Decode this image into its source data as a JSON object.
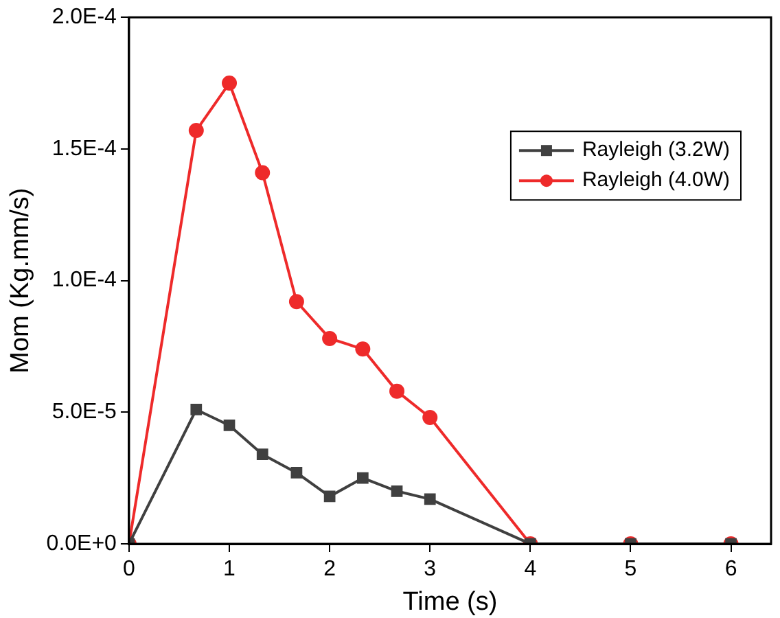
{
  "chart_data": {
    "type": "line",
    "xlabel": "Time (s)",
    "ylabel": "Mom (Kg.mm/s)",
    "x": [
      0,
      0.67,
      1,
      1.33,
      1.67,
      2,
      2.33,
      2.67,
      3,
      4,
      5,
      6
    ],
    "series": [
      {
        "name": "Rayleigh (3.2W)",
        "color": "#404040",
        "marker": "square",
        "values": [
          0,
          5.1e-05,
          4.5e-05,
          3.4e-05,
          2.7e-05,
          1.8e-05,
          2.5e-05,
          2e-05,
          1.7e-05,
          0,
          0,
          0
        ]
      },
      {
        "name": "Rayleigh (4.0W)",
        "color": "#ee2a2a",
        "marker": "circle",
        "values": [
          0,
          0.000157,
          0.000175,
          0.000141,
          9.2e-05,
          7.8e-05,
          7.4e-05,
          5.8e-05,
          4.8e-05,
          0,
          0,
          0
        ]
      }
    ],
    "xlim": [
      0,
      6.4
    ],
    "xticks": [
      0,
      1,
      2,
      3,
      4,
      5,
      6
    ],
    "ylim": [
      0,
      0.0002
    ],
    "yticks": [
      {
        "value": 0,
        "label": "0.0E+0"
      },
      {
        "value": 5e-05,
        "label": "5.0E-5"
      },
      {
        "value": 0.0001,
        "label": "1.0E-4"
      },
      {
        "value": 0.00015,
        "label": "1.5E-4"
      },
      {
        "value": 0.0002,
        "label": "2.0E-4"
      }
    ],
    "grid": false,
    "legend": "top right",
    "line_style": "solid"
  }
}
